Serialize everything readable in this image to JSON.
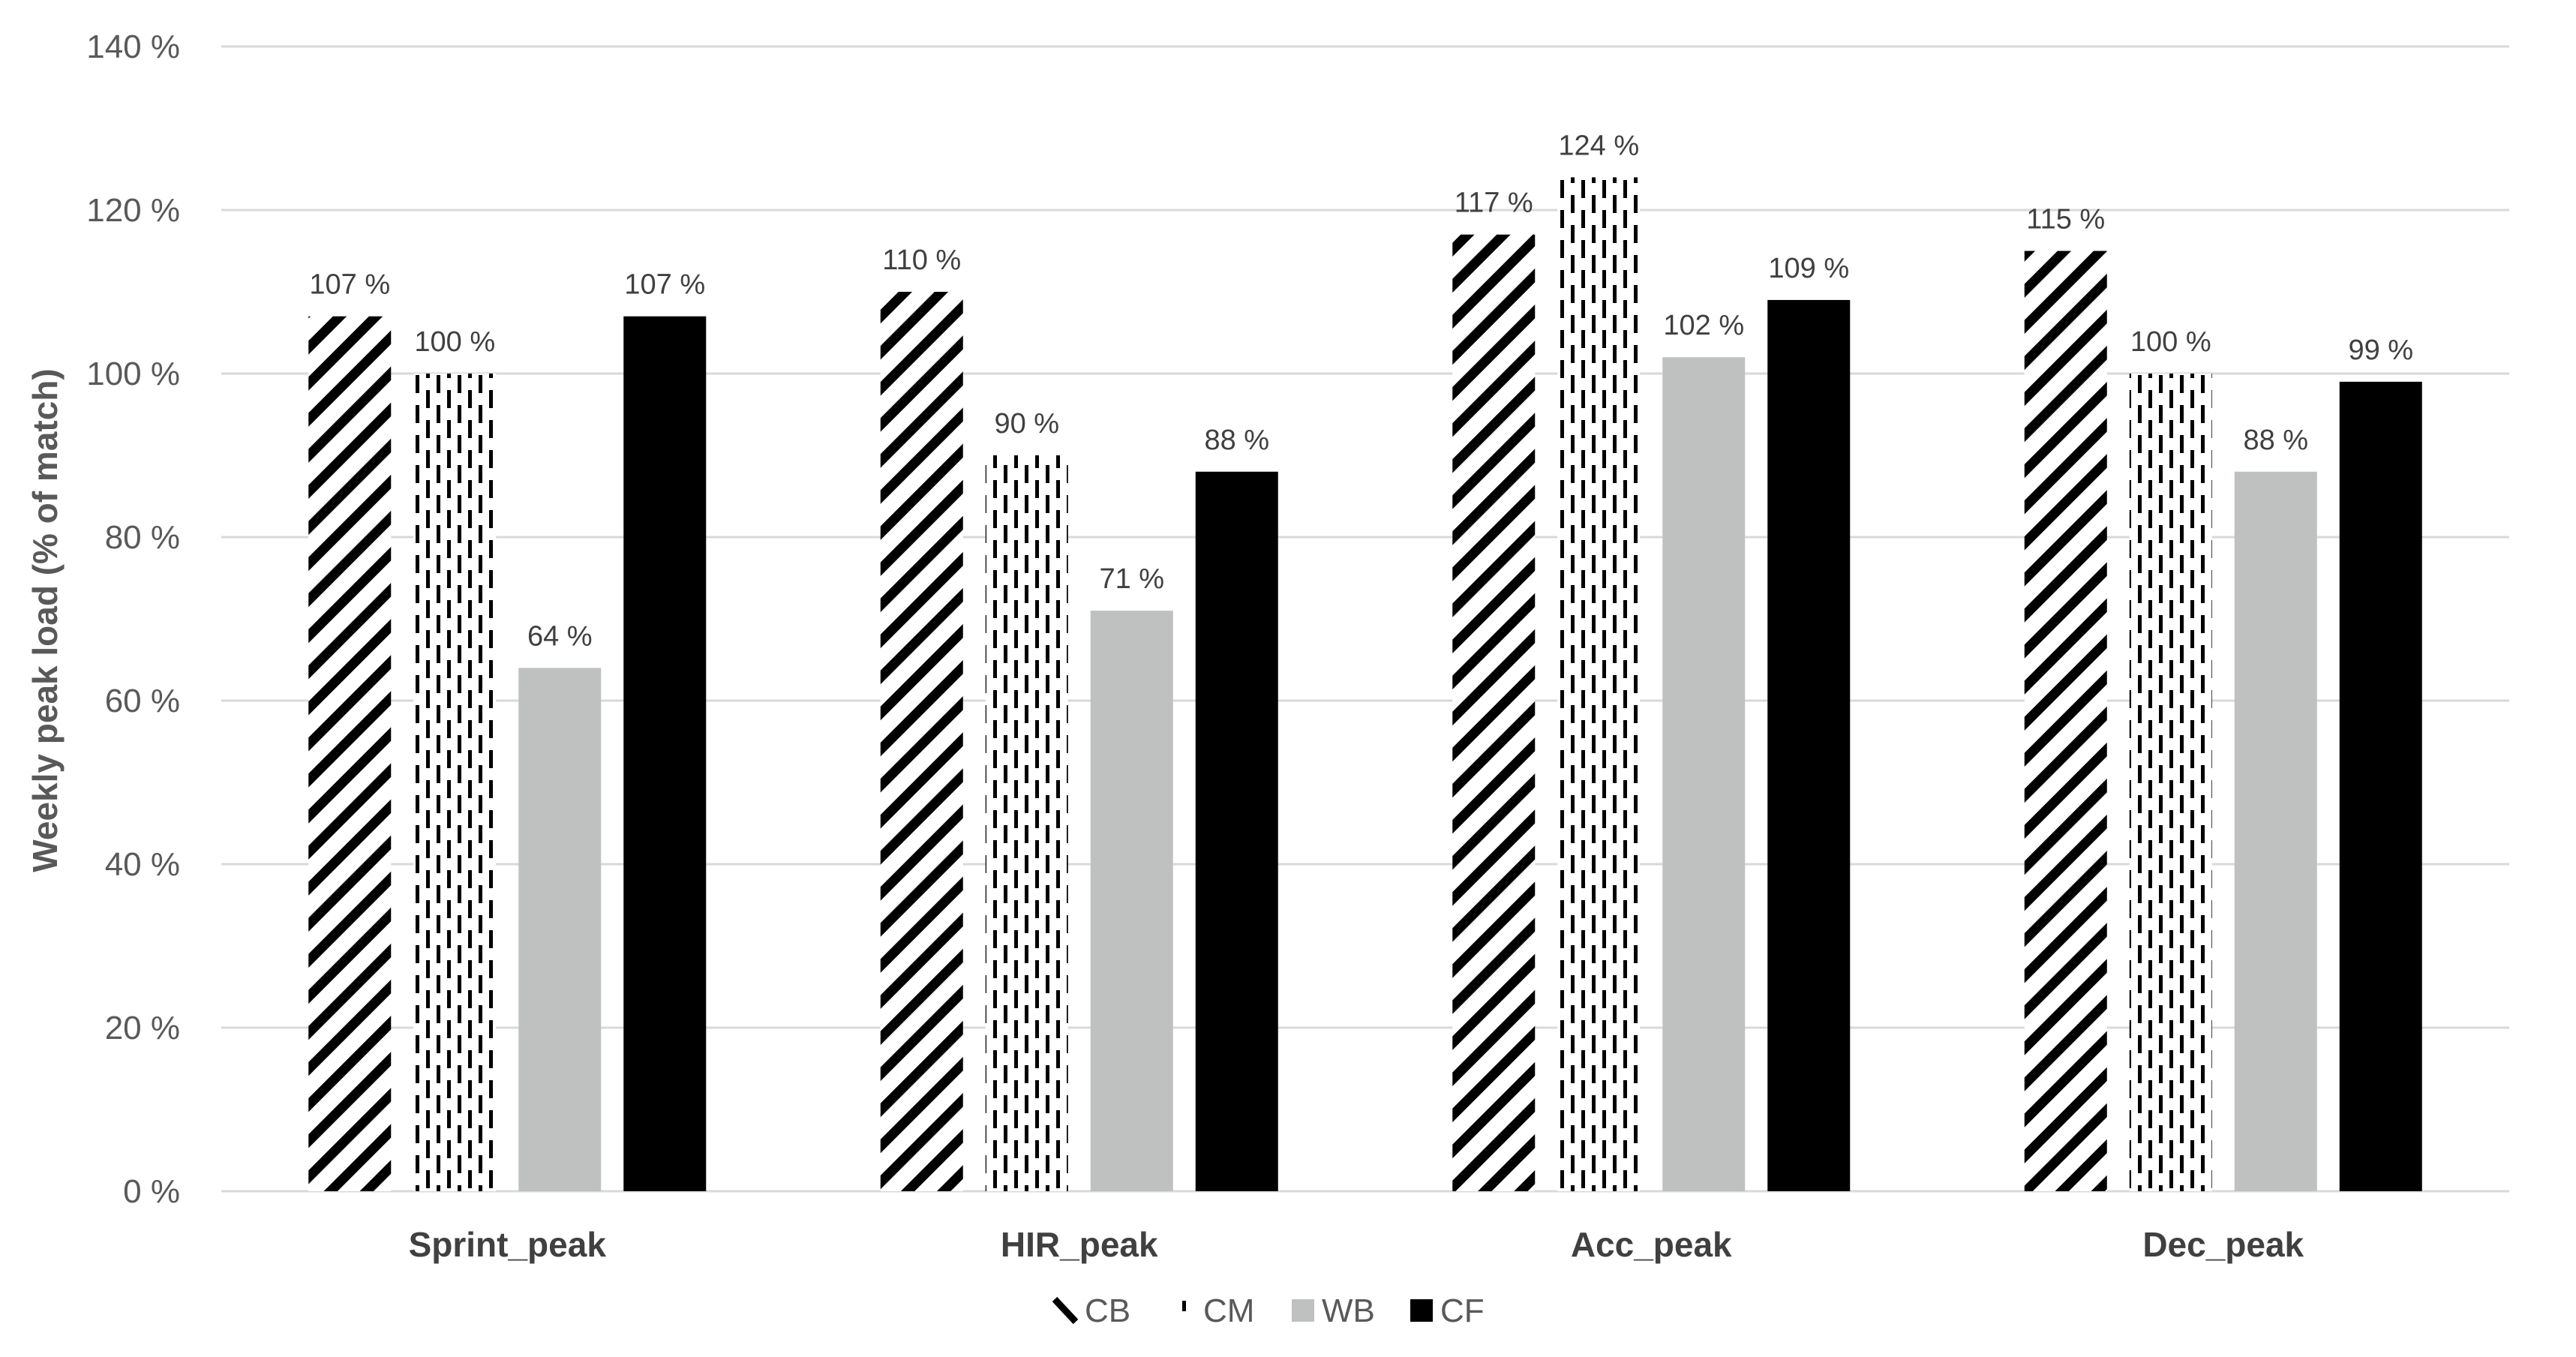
{
  "chart_data": {
    "type": "bar",
    "title": "",
    "xlabel": "",
    "ylabel": "Weekly peak load (% of match)",
    "categories": [
      "Sprint_peak",
      "HIR_peak",
      "Acc_peak",
      "Dec_peak"
    ],
    "series": [
      {
        "name": "CB",
        "pattern": "diagonal-stripes",
        "color": "#000000",
        "values": [
          107,
          110,
          117,
          115
        ],
        "labels": [
          "107 %",
          "110 %",
          "117 %",
          "115 %"
        ]
      },
      {
        "name": "CM",
        "pattern": "vertical-dashes",
        "color": "#000000",
        "values": [
          100,
          90,
          124,
          100
        ],
        "labels": [
          "100 %",
          "90 %",
          "124 %",
          "100 %"
        ]
      },
      {
        "name": "WB",
        "pattern": "solid",
        "color": "#bfc1c1",
        "values": [
          64,
          71,
          102,
          88
        ],
        "labels": [
          "64 %",
          "71 %",
          "102 %",
          "88 %"
        ]
      },
      {
        "name": "CF",
        "pattern": "solid",
        "color": "#000000",
        "values": [
          107,
          88,
          109,
          99
        ],
        "labels": [
          "107 %",
          "88 %",
          "109 %",
          "99 %"
        ]
      }
    ],
    "ylim": [
      0,
      140
    ],
    "yticks": [
      0,
      20,
      40,
      60,
      80,
      100,
      120,
      140
    ],
    "ytick_labels": [
      "0 %",
      "20 %",
      "40 %",
      "60 %",
      "80 %",
      "100 %",
      "120 %",
      "140 %"
    ],
    "grid": true,
    "legend": "bottom-center"
  }
}
